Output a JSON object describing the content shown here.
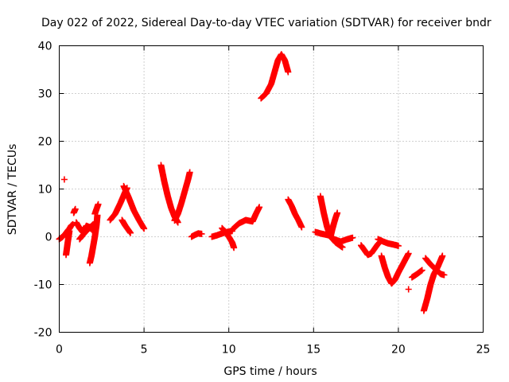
{
  "chart_data": {
    "type": "scatter",
    "title": "Day 022 of 2022, Sidereal Day-to-day VTEC variation (SDTVAR) for receiver bndr",
    "xlabel": "GPS time / hours",
    "ylabel": "SDTVAR / TECUs",
    "xlim": [
      0,
      25
    ],
    "ylim": [
      -20,
      40
    ],
    "xticks": [
      0,
      5,
      10,
      15,
      20,
      25
    ],
    "yticks": [
      -20,
      -10,
      0,
      10,
      20,
      30,
      40
    ],
    "grid": true,
    "marker": "+",
    "color": "#ff0000",
    "series": [
      {
        "name": "arc1",
        "x": [
          0.3
        ],
        "y": [
          12
        ]
      },
      {
        "name": "arc2",
        "x": [
          0.0,
          0.2,
          0.4,
          0.5,
          0.6,
          0.7,
          0.8
        ],
        "y": [
          -0.5,
          0.0,
          0.8,
          1.3,
          1.7,
          2.3,
          2.6
        ]
      },
      {
        "name": "arc3",
        "x": [
          0.4,
          0.45,
          0.5,
          0.55,
          0.6
        ],
        "y": [
          -3.8,
          -2.5,
          -1.2,
          0.0,
          1.2
        ]
      },
      {
        "name": "arc4",
        "x": [
          0.85,
          0.9,
          0.95
        ],
        "y": [
          5.0,
          5.4,
          5.8
        ]
      },
      {
        "name": "arc5",
        "x": [
          1.0,
          1.2,
          1.4,
          1.5,
          1.6,
          1.8,
          2.0
        ],
        "y": [
          3.0,
          1.8,
          0.9,
          1.6,
          2.3,
          2.0,
          1.2
        ]
      },
      {
        "name": "arc6",
        "x": [
          1.2,
          1.4,
          1.6,
          1.8,
          2.0
        ],
        "y": [
          -0.5,
          0.4,
          1.2,
          1.9,
          2.6
        ]
      },
      {
        "name": "arc7",
        "x": [
          1.8,
          1.9,
          2.0,
          2.1,
          2.2,
          2.25
        ],
        "y": [
          -5.5,
          -4.0,
          -2.0,
          0.0,
          2.5,
          4.5
        ]
      },
      {
        "name": "arc8",
        "x": [
          2.1,
          2.2,
          2.3
        ],
        "y": [
          4.8,
          5.8,
          6.8
        ]
      },
      {
        "name": "arc9",
        "x": [
          3.0,
          3.3,
          3.6,
          3.9,
          4.0
        ],
        "y": [
          3.5,
          4.8,
          7.0,
          9.5,
          10.2
        ]
      },
      {
        "name": "arc10",
        "x": [
          3.7,
          3.8,
          3.9,
          4.0,
          4.1,
          4.2
        ],
        "y": [
          3.5,
          2.9,
          2.3,
          1.8,
          1.3,
          0.8
        ]
      },
      {
        "name": "arc11",
        "x": [
          3.8,
          4.1,
          4.4,
          4.7,
          5.0
        ],
        "y": [
          10.6,
          8.2,
          5.5,
          3.5,
          1.7
        ]
      },
      {
        "name": "arc12",
        "x": [
          6.0,
          6.2,
          6.4,
          6.6,
          6.8,
          7.0
        ],
        "y": [
          15.0,
          11.5,
          8.5,
          6.0,
          4.2,
          3.0
        ]
      },
      {
        "name": "arc13",
        "x": [
          6.8,
          7.0,
          7.2,
          7.4,
          7.6,
          7.7
        ],
        "y": [
          3.4,
          4.8,
          7.0,
          9.5,
          12.0,
          13.5
        ]
      },
      {
        "name": "arc14",
        "x": [
          7.8,
          8.0,
          8.2,
          8.4
        ],
        "y": [
          0.0,
          0.4,
          0.7,
          0.6
        ]
      },
      {
        "name": "arc15",
        "x": [
          9.0,
          9.3,
          9.6,
          9.9,
          10.2
        ],
        "y": [
          0.0,
          0.3,
          0.7,
          1.0,
          1.2
        ]
      },
      {
        "name": "arc16",
        "x": [
          9.6,
          9.8,
          10.0,
          10.2,
          10.3
        ],
        "y": [
          1.8,
          1.0,
          0.0,
          -1.2,
          -2.3
        ]
      },
      {
        "name": "arc17",
        "x": [
          10.2,
          10.6,
          11.0,
          11.4,
          11.6,
          11.8
        ],
        "y": [
          1.5,
          2.8,
          3.5,
          3.2,
          4.8,
          6.2
        ]
      },
      {
        "name": "arc18",
        "x": [
          11.9,
          12.2,
          12.5,
          12.7,
          12.9,
          13.1,
          13.3,
          13.5
        ],
        "y": [
          29.0,
          30.0,
          32.0,
          34.5,
          37.0,
          38.2,
          37.0,
          34.5
        ]
      },
      {
        "name": "arc19",
        "x": [
          13.5,
          13.7,
          13.9,
          14.1,
          14.3
        ],
        "y": [
          7.8,
          6.5,
          4.8,
          3.5,
          2.0
        ]
      },
      {
        "name": "arc20",
        "x": [
          15.1,
          15.5,
          15.9,
          16.2,
          16.6,
          17.0,
          17.3
        ],
        "y": [
          1.0,
          0.6,
          0.3,
          -0.5,
          -1.0,
          -0.5,
          -0.2
        ]
      },
      {
        "name": "arc21",
        "x": [
          15.4,
          15.6,
          15.8,
          16.0,
          16.3,
          16.7
        ],
        "y": [
          8.5,
          5.0,
          2.0,
          0.0,
          -1.2,
          -2.2
        ]
      },
      {
        "name": "arc22",
        "x": [
          16.0,
          16.1,
          16.2,
          16.3,
          16.4
        ],
        "y": [
          0.0,
          1.5,
          2.8,
          4.0,
          5.0
        ]
      },
      {
        "name": "arc23",
        "x": [
          17.8,
          18.0,
          18.2,
          18.4,
          18.6,
          18.8,
          19.0
        ],
        "y": [
          -1.8,
          -2.8,
          -3.8,
          -3.5,
          -2.5,
          -1.5,
          -0.8
        ]
      },
      {
        "name": "arc24",
        "x": [
          18.8,
          19.1,
          19.4,
          19.8,
          20.0
        ],
        "y": [
          -0.5,
          -1.0,
          -1.4,
          -1.7,
          -1.9
        ]
      },
      {
        "name": "arc25",
        "x": [
          19.0,
          19.2,
          19.4,
          19.6,
          19.8,
          20.0,
          20.3,
          20.6
        ],
        "y": [
          -4.0,
          -6.5,
          -8.5,
          -9.8,
          -9.0,
          -7.5,
          -5.5,
          -3.5
        ]
      },
      {
        "name": "arc26",
        "x": [
          20.6
        ],
        "y": [
          -11.0
        ]
      },
      {
        "name": "arc27",
        "x": [
          20.8,
          21.1,
          21.4
        ],
        "y": [
          -8.5,
          -7.8,
          -7.0
        ]
      },
      {
        "name": "arc28",
        "x": [
          21.5,
          21.7,
          21.9,
          22.1,
          22.3,
          22.6
        ],
        "y": [
          -15.5,
          -13.0,
          -10.0,
          -7.8,
          -6.5,
          -4.0
        ]
      },
      {
        "name": "arc29",
        "x": [
          21.6,
          21.9,
          22.2,
          22.5,
          22.7
        ],
        "y": [
          -4.5,
          -5.8,
          -6.8,
          -7.8,
          -8.0
        ]
      }
    ]
  }
}
